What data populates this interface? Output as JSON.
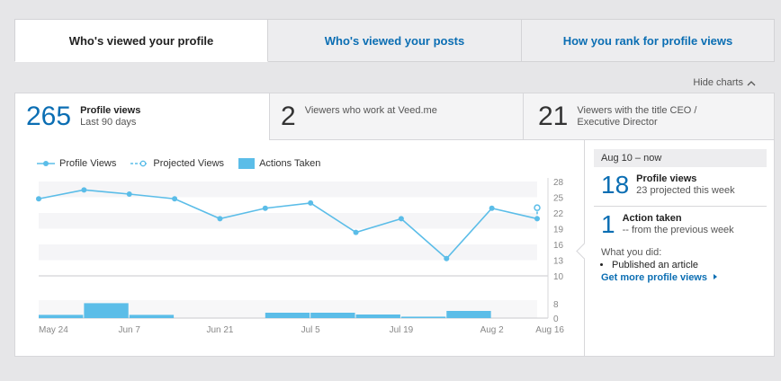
{
  "tabs": [
    {
      "label": "Who's viewed your profile",
      "active": true
    },
    {
      "label": "Who's viewed your posts",
      "active": false
    },
    {
      "label": "How you rank for profile views",
      "active": false
    }
  ],
  "hide_charts": {
    "label": "Hide charts",
    "icon": "chevron-up-icon"
  },
  "stats": [
    {
      "number": "265",
      "title": "Profile views",
      "subtitle": "Last 90 days"
    },
    {
      "number": "2",
      "text": "Viewers who work at Veed.me"
    },
    {
      "number": "21",
      "text": "Viewers with the title CEO / Executive Director"
    }
  ],
  "colors": {
    "accent": "#0b6eb3",
    "series": "#5bbde8",
    "projected_band": "#d6eaf9"
  },
  "chart_data": {
    "type": "line",
    "legend": [
      "Profile Views",
      "Projected Views",
      "Actions Taken"
    ],
    "legend_position": "top-left",
    "x_ticks": [
      "May 24",
      "Jun 7",
      "Jun 21",
      "Jul 5",
      "Jul 19",
      "Aug 2",
      "Aug 16"
    ],
    "views_y_ticks": [
      28,
      25,
      22,
      19,
      16,
      13,
      10
    ],
    "views_ylim": [
      10,
      28
    ],
    "actions_y_ticks": [
      8,
      0
    ],
    "actions_ylim": [
      0,
      10
    ],
    "profile_views": [
      24.7,
      26.4,
      25.6,
      24.7,
      20.9,
      22.9,
      23.9,
      18.3,
      20.9,
      13.3,
      22.9,
      20.9
    ],
    "projected_views": [
      20.9,
      23
    ],
    "actions_taken": [
      1.8,
      8.3,
      1.8,
      0,
      0,
      3,
      3,
      2,
      0.8,
      4,
      0,
      1.8,
      1
    ]
  },
  "side": {
    "period": "Aug 10 – now",
    "views_number": "18",
    "views_title": "Profile views",
    "views_sub": "23 projected this week",
    "action_number": "1",
    "action_title": "Action taken",
    "action_sub": "-- from the previous week",
    "did_label": "What you did:",
    "did_item": "Published an article",
    "more_link": "Get more profile views"
  }
}
